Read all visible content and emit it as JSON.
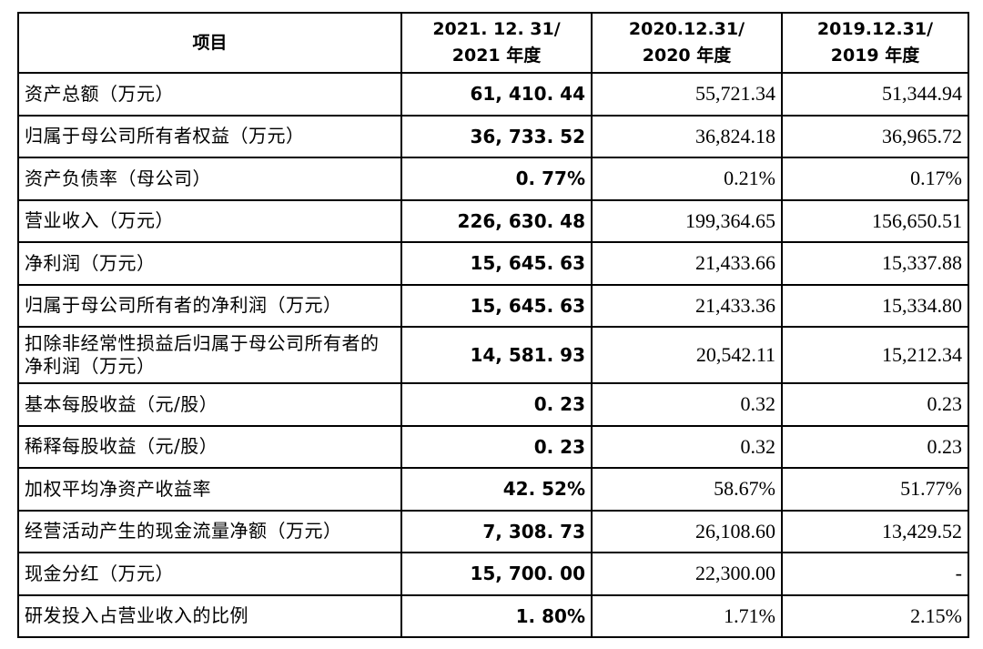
{
  "header": {
    "item": "项目",
    "col2021": {
      "line1": "2021. 12. 31/",
      "line2": "2021 年度"
    },
    "col2020": {
      "line1": "2020.12.31/",
      "line2": "2020 年度"
    },
    "col2019": {
      "line1": "2019.12.31/",
      "line2": "2019 年度"
    }
  },
  "rows": [
    {
      "label": "资产总额（万元）",
      "v2021": "61, 410. 44",
      "v2020": "55,721.34",
      "v2019": "51,344.94"
    },
    {
      "label": "归属于母公司所有者权益（万元）",
      "v2021": "36, 733. 52",
      "v2020": "36,824.18",
      "v2019": "36,965.72"
    },
    {
      "label": "资产负债率（母公司）",
      "v2021": "0. 77%",
      "v2020": "0.21%",
      "v2019": "0.17%"
    },
    {
      "label": "营业收入（万元）",
      "v2021": "226, 630. 48",
      "v2020": "199,364.65",
      "v2019": "156,650.51"
    },
    {
      "label": "净利润（万元）",
      "v2021": "15, 645. 63",
      "v2020": "21,433.66",
      "v2019": "15,337.88"
    },
    {
      "label": "归属于母公司所有者的净利润（万元）",
      "v2021": "15, 645. 63",
      "v2020": "21,433.36",
      "v2019": "15,334.80"
    },
    {
      "label": "扣除非经常性损益后归属于母公司所有者的净利润（万元）",
      "v2021": "14, 581. 93",
      "v2020": "20,542.11",
      "v2019": "15,212.34"
    },
    {
      "label": "基本每股收益（元/股）",
      "v2021": "0. 23",
      "v2020": "0.32",
      "v2019": "0.23"
    },
    {
      "label": "稀释每股收益（元/股）",
      "v2021": "0. 23",
      "v2020": "0.32",
      "v2019": "0.23"
    },
    {
      "label": "加权平均净资产收益率",
      "v2021": "42. 52%",
      "v2020": "58.67%",
      "v2019": "51.77%"
    },
    {
      "label": "经营活动产生的现金流量净额（万元）",
      "v2021": "7, 308. 73",
      "v2020": "26,108.60",
      "v2019": "13,429.52"
    },
    {
      "label": "现金分红（万元）",
      "v2021": "15, 700. 00",
      "v2020": "22,300.00",
      "v2019": "-"
    },
    {
      "label": "研发投入占营业收入的比例",
      "v2021": "1. 80%",
      "v2020": "1.71%",
      "v2019": "2.15%"
    }
  ]
}
